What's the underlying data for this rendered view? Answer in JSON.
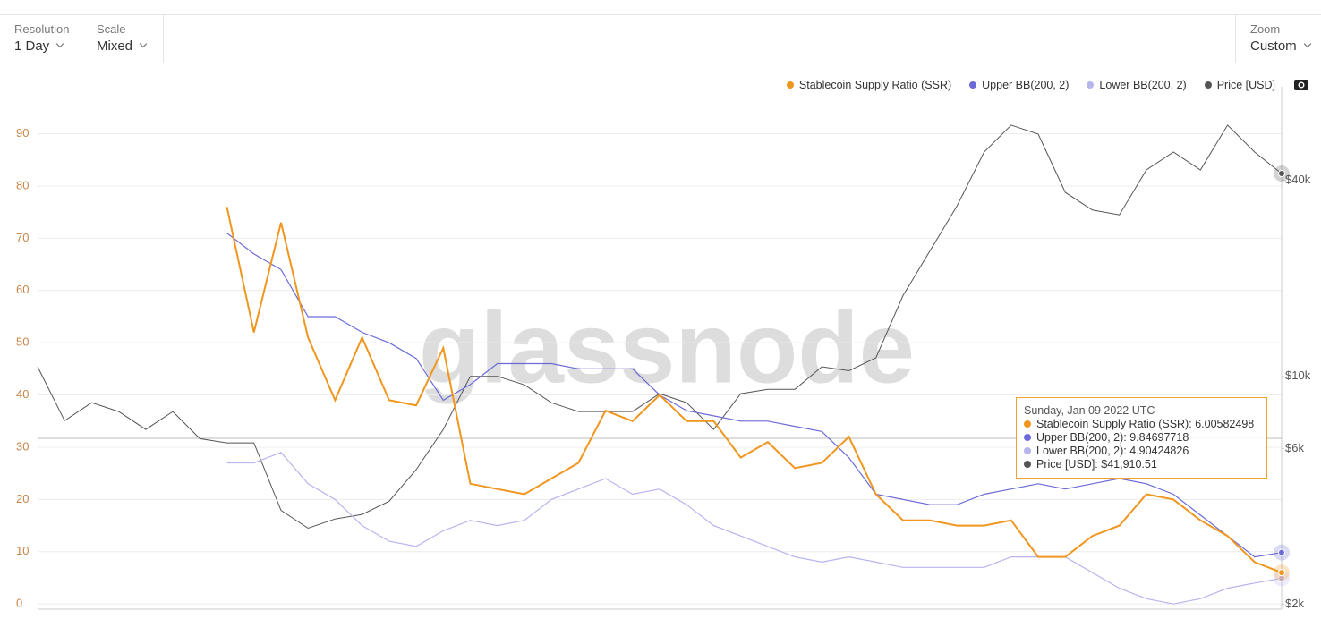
{
  "toolbar": {
    "resolution_label": "Resolution",
    "resolution_value": "1 Day",
    "scale_label": "Scale",
    "scale_value": "Mixed",
    "zoom_label": "Zoom",
    "zoom_value": "Custom"
  },
  "chart_data": {
    "type": "line",
    "watermark": "glassnode",
    "ylim": [
      -1,
      99
    ],
    "yticks": [
      0,
      10,
      20,
      30,
      40,
      50,
      60,
      70,
      80,
      90
    ],
    "y2lim": [
      1930,
      77400
    ],
    "y2scale": "log",
    "y2ticks": [
      {
        "value": 2000,
        "label": "$2k"
      },
      {
        "value": 6000,
        "label": "$6k"
      },
      {
        "value": 10000,
        "label": "$10k"
      },
      {
        "value": 40000,
        "label": "$40k"
      }
    ],
    "grid": true,
    "legend": "top-right",
    "tooltip": {
      "date": "Sunday, Jan 09 2022 UTC",
      "index": 46
    },
    "series": [
      {
        "name": "Stablecoin Supply Ratio (SSR)",
        "color": "#f0961e",
        "values": [
          null,
          null,
          null,
          null,
          null,
          null,
          null,
          76,
          52,
          73,
          51,
          39,
          51,
          39,
          38,
          49,
          23,
          22,
          21,
          24,
          27,
          37,
          35,
          40,
          35,
          35,
          28,
          31,
          26,
          27,
          32,
          21,
          16,
          16,
          15,
          15,
          16,
          9,
          9,
          13,
          15,
          21,
          20,
          16,
          13,
          8,
          6.00582498
        ]
      },
      {
        "name": "Upper BB(200, 2)",
        "color": "#6b6bd8",
        "values": [
          null,
          null,
          null,
          null,
          null,
          null,
          null,
          71,
          67,
          64,
          55,
          55,
          52,
          50,
          47,
          39,
          42,
          46,
          46,
          46,
          45,
          45,
          45,
          40,
          37,
          36,
          35,
          35,
          34,
          33,
          28,
          21,
          20,
          19,
          19,
          21,
          22,
          23,
          22,
          23,
          24,
          23,
          21,
          17,
          13,
          9,
          9.84697718
        ]
      },
      {
        "name": "Lower BB(200, 2)",
        "color": "#b7b4ee",
        "values": [
          null,
          null,
          null,
          null,
          null,
          null,
          null,
          27,
          27,
          29,
          23,
          20,
          15,
          12,
          11,
          14,
          16,
          15,
          16,
          20,
          22,
          24,
          21,
          22,
          19,
          15,
          13,
          11,
          9,
          8,
          9,
          8,
          7,
          7,
          7,
          7,
          9,
          9,
          9,
          6,
          3,
          1,
          0,
          1,
          3,
          4,
          4.90424826
        ]
      },
      {
        "name": "Price [USD]",
        "color": "#555555",
        "axis": "y2",
        "values": [
          10700,
          7310,
          8300,
          7800,
          6870,
          7800,
          6440,
          6250,
          6250,
          3880,
          3420,
          3650,
          3770,
          4140,
          5170,
          6870,
          10000,
          10000,
          9420,
          8300,
          7800,
          7800,
          7800,
          8850,
          8300,
          6870,
          8850,
          9120,
          9120,
          10700,
          10400,
          11400,
          17700,
          24300,
          33400,
          48800,
          59000,
          55400,
          36700,
          32400,
          31300,
          43000,
          48800,
          43000,
          59000,
          48800,
          41910.51
        ],
        "value_labels": [
          null,
          null,
          null,
          null,
          null,
          null,
          null,
          null,
          null,
          null,
          null,
          null,
          null,
          null,
          null,
          null,
          null,
          null,
          null,
          null,
          null,
          null,
          null,
          null,
          null,
          null,
          null,
          null,
          null,
          null,
          null,
          null,
          null,
          null,
          null,
          null,
          null,
          null,
          null,
          null,
          null,
          null,
          null,
          null,
          null,
          null,
          "$41,910.51"
        ]
      }
    ]
  }
}
